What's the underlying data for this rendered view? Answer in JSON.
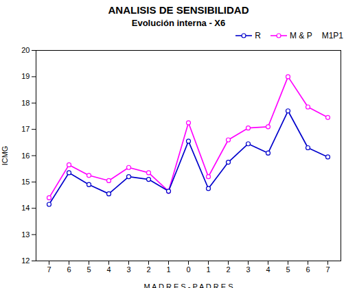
{
  "chart_data": {
    "type": "line",
    "title": "ANALISIS DE SENSIBILIDAD",
    "subtitle": "Evolución interna - X6",
    "xlabel": "M A D R E S - P A D R E S",
    "ylabel": "ICMG",
    "categories": [
      "7",
      "6",
      "5",
      "4",
      "3",
      "2",
      "1",
      "0",
      "1",
      "2",
      "3",
      "4",
      "5",
      "6",
      "7"
    ],
    "series": [
      {
        "name": "R",
        "color": "#0000CC",
        "marker": "o",
        "line_style": "solid",
        "values": [
          14.15,
          15.35,
          14.9,
          14.55,
          15.2,
          15.1,
          14.65,
          16.55,
          14.75,
          15.75,
          16.45,
          16.1,
          17.7,
          16.3,
          15.95
        ]
      },
      {
        "name": "M & P",
        "color": "#FF00FF",
        "marker": "o",
        "line_style": "solid",
        "values": [
          14.4,
          15.65,
          15.25,
          15.05,
          15.55,
          15.35,
          14.65,
          17.25,
          15.2,
          16.6,
          17.05,
          17.1,
          19.0,
          17.85,
          17.45
        ]
      }
    ],
    "ylim": [
      12,
      20
    ],
    "yticks": [
      12,
      13,
      14,
      15,
      16,
      17,
      18,
      19,
      20
    ],
    "grid": false,
    "legend": "upper right",
    "legend_note": "M1P1"
  }
}
